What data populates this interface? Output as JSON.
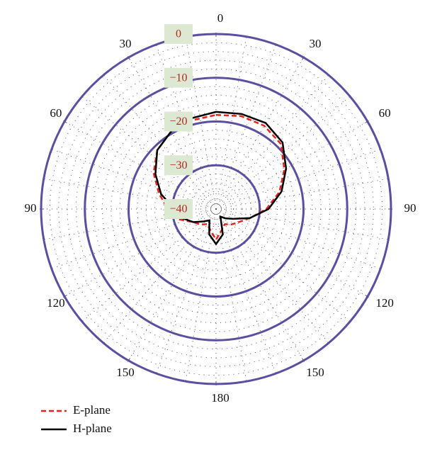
{
  "chart_data": {
    "type": "polar",
    "theta": [
      0,
      15,
      30,
      45,
      60,
      75,
      90,
      105,
      120,
      135,
      150,
      165,
      180,
      195,
      210,
      225,
      240,
      255,
      270,
      285,
      300,
      315,
      330,
      345
    ],
    "thetaticks": [
      0,
      30,
      60,
      90,
      120,
      150,
      180,
      {
        "value": 210,
        "label": "150"
      },
      {
        "value": 240,
        "label": "120"
      },
      {
        "value": 270,
        "label": "90"
      },
      {
        "value": 300,
        "label": "60"
      },
      {
        "value": 330,
        "label": "30"
      }
    ],
    "rlim": [
      -40,
      0
    ],
    "rticks": [
      0,
      {
        "value": -10,
        "label": "−10"
      },
      {
        "value": -20,
        "label": "−20"
      },
      {
        "value": -30,
        "label": "−30"
      },
      {
        "value": -40,
        "label": "−40"
      }
    ],
    "grid": true,
    "legend": "bottom-left",
    "series": [
      {
        "name": "E-plane",
        "color": "#e8231f",
        "dash": true,
        "values": [
          -18.5,
          -18,
          -18,
          -19,
          -22,
          -25,
          -28.5,
          -32,
          -34,
          -35,
          -36,
          -35,
          -33,
          -35,
          -36,
          -35,
          -34,
          -31,
          -29,
          -26.5,
          -23.5,
          -21,
          -19.5,
          -19
        ]
      },
      {
        "name": "H-plane",
        "color": "#000000",
        "dash": false,
        "values": [
          -17.8,
          -17.5,
          -17.3,
          -18.5,
          -21.5,
          -24.5,
          -28,
          -32,
          -35.5,
          -37,
          -38,
          -34,
          -32,
          -34,
          -37,
          -36,
          -34,
          -32,
          -30.5,
          -27,
          -24,
          -21,
          -19.5,
          -18.5
        ]
      }
    ]
  }
}
